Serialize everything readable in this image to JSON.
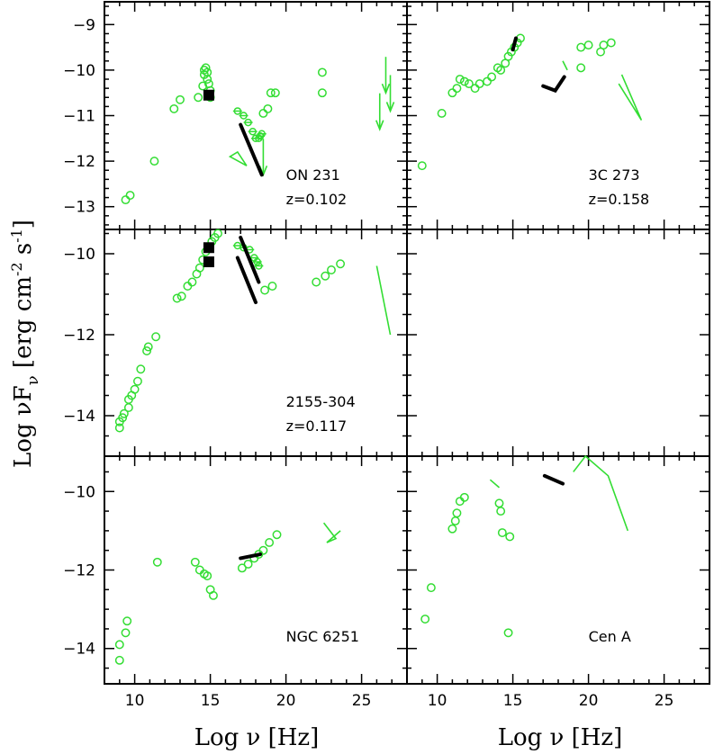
{
  "figure": {
    "xlabel": "Log ν [Hz]",
    "ylabel": "Log νF_ν [erg cm^-2 s^-1]",
    "ylabel_parts": {
      "main": "Log νF",
      "sub": "ν",
      "bracket": "[erg cm",
      "exp1": "-2",
      "mid": " s",
      "exp2": "-1",
      "end": "]"
    },
    "colors": {
      "data": "#33dd33",
      "models": "#000000",
      "frame": "#000000"
    },
    "xlim": [
      8,
      28
    ],
    "xticks": [
      10,
      15,
      20,
      25
    ]
  },
  "chart_data": [
    {
      "type": "scatter",
      "title": "ON 231",
      "subtitle": "z=0.102",
      "ylim": [
        -13.5,
        -8.5
      ],
      "yticks": [
        -9,
        -10,
        -11,
        -12,
        -13
      ],
      "green_points": [
        [
          9.4,
          -12.85
        ],
        [
          9.7,
          -12.75
        ],
        [
          11.3,
          -12.0
        ],
        [
          12.6,
          -10.85
        ],
        [
          13.0,
          -10.65
        ],
        [
          14.2,
          -10.6
        ],
        [
          14.5,
          -10.35
        ],
        [
          14.6,
          -10.1
        ],
        [
          14.6,
          -10.0
        ],
        [
          14.7,
          -9.95
        ],
        [
          14.8,
          -10.05
        ],
        [
          14.8,
          -10.2
        ],
        [
          14.9,
          -10.3
        ],
        [
          15.0,
          -10.45
        ],
        [
          15.0,
          -10.6
        ],
        [
          18.5,
          -10.95
        ],
        [
          18.8,
          -10.85
        ],
        [
          19.0,
          -10.5
        ],
        [
          19.3,
          -10.5
        ],
        [
          22.4,
          -10.05
        ],
        [
          22.4,
          -10.5
        ]
      ],
      "green_xray": [
        [
          16.8,
          -10.9
        ],
        [
          17.2,
          -11.0
        ],
        [
          17.5,
          -11.15
        ],
        [
          17.8,
          -11.35
        ],
        [
          18.0,
          -11.5
        ],
        [
          18.2,
          -11.5
        ],
        [
          18.3,
          -11.45
        ],
        [
          18.4,
          -11.4
        ]
      ],
      "green_upper_limits": [
        [
          18.5,
          -12.3
        ],
        [
          26.2,
          -11.3
        ],
        [
          26.6,
          -10.5
        ],
        [
          26.9,
          -10.9
        ]
      ],
      "green_gamma_bowtie": [
        [
          16.3,
          -11.9
        ],
        [
          17.4,
          -12.1
        ],
        [
          16.8,
          -11.8
        ]
      ],
      "black_segments": [
        [
          [
            17.0,
            -11.2
          ],
          [
            18.4,
            -12.3
          ]
        ]
      ],
      "black_blocks": [
        [
          14.9,
          -10.55
        ]
      ]
    },
    {
      "type": "scatter",
      "title": "3C 273",
      "subtitle": "z=0.158",
      "ylim": [
        -13.5,
        -8.5
      ],
      "green_points": [
        [
          9.0,
          -12.1
        ],
        [
          10.3,
          -10.95
        ],
        [
          11.0,
          -10.5
        ],
        [
          11.3,
          -10.4
        ],
        [
          11.5,
          -10.2
        ],
        [
          11.8,
          -10.25
        ],
        [
          12.1,
          -10.3
        ],
        [
          12.5,
          -10.4
        ],
        [
          12.8,
          -10.3
        ],
        [
          13.3,
          -10.25
        ],
        [
          13.6,
          -10.15
        ],
        [
          14.0,
          -9.95
        ],
        [
          14.2,
          -10.0
        ],
        [
          14.5,
          -9.85
        ],
        [
          14.7,
          -9.7
        ],
        [
          14.9,
          -9.6
        ],
        [
          15.1,
          -9.5
        ],
        [
          15.3,
          -9.4
        ],
        [
          15.5,
          -9.3
        ],
        [
          19.5,
          -9.5
        ],
        [
          19.5,
          -9.95
        ],
        [
          20.0,
          -9.45
        ],
        [
          20.8,
          -9.6
        ],
        [
          21.0,
          -9.45
        ],
        [
          21.5,
          -9.4
        ]
      ],
      "green_lines": [
        [
          [
            22.0,
            -10.3
          ],
          [
            23.5,
            -11.1
          ],
          [
            22.2,
            -10.1
          ]
        ],
        [
          [
            18.3,
            -9.8
          ],
          [
            18.6,
            -10.0
          ]
        ]
      ],
      "black_segments": [
        [
          [
            17.0,
            -10.35
          ],
          [
            17.8,
            -10.45
          ],
          [
            18.4,
            -10.15
          ]
        ],
        [
          [
            15.0,
            -9.55
          ],
          [
            15.2,
            -9.3
          ]
        ]
      ],
      "black_blocks": []
    },
    {
      "type": "scatter",
      "title": "2155-304",
      "subtitle": "z=0.117",
      "ylim": [
        -15,
        -9.4
      ],
      "yticks": [
        -10,
        -12,
        -14
      ],
      "green_points": [
        [
          9.0,
          -14.3
        ],
        [
          9.0,
          -14.15
        ],
        [
          9.2,
          -14.05
        ],
        [
          9.3,
          -13.95
        ],
        [
          9.6,
          -13.8
        ],
        [
          9.6,
          -13.6
        ],
        [
          9.8,
          -13.5
        ],
        [
          10.0,
          -13.35
        ],
        [
          10.2,
          -13.15
        ],
        [
          10.4,
          -12.85
        ],
        [
          10.8,
          -12.4
        ],
        [
          10.9,
          -12.3
        ],
        [
          11.4,
          -12.05
        ],
        [
          12.8,
          -11.1
        ],
        [
          13.1,
          -11.05
        ],
        [
          13.5,
          -10.8
        ],
        [
          13.8,
          -10.7
        ],
        [
          14.1,
          -10.5
        ],
        [
          14.3,
          -10.35
        ],
        [
          14.5,
          -10.15
        ],
        [
          14.7,
          -9.95
        ],
        [
          14.9,
          -9.85
        ],
        [
          15.1,
          -9.7
        ],
        [
          15.3,
          -9.6
        ],
        [
          15.5,
          -9.5
        ],
        [
          18.6,
          -10.9
        ],
        [
          19.1,
          -10.8
        ],
        [
          22.0,
          -10.7
        ],
        [
          22.6,
          -10.55
        ],
        [
          23.0,
          -10.4
        ],
        [
          23.6,
          -10.25
        ]
      ],
      "green_xray": [
        [
          16.8,
          -9.8
        ],
        [
          17.2,
          -9.85
        ],
        [
          17.6,
          -9.9
        ],
        [
          17.9,
          -10.1
        ],
        [
          18.1,
          -10.2
        ],
        [
          18.2,
          -10.3
        ]
      ],
      "green_lines": [
        [
          [
            26.0,
            -10.3
          ],
          [
            26.9,
            -12.0
          ]
        ]
      ],
      "black_segments": [
        [
          [
            17.0,
            -9.6
          ],
          [
            18.2,
            -10.7
          ]
        ],
        [
          [
            16.8,
            -10.1
          ],
          [
            18.0,
            -11.2
          ]
        ]
      ],
      "black_blocks": [
        [
          14.9,
          -9.85
        ],
        [
          14.9,
          -10.2
        ]
      ]
    },
    {
      "type": "scatter",
      "title": "",
      "subtitle": "",
      "ylim": [
        -15,
        -9.4
      ],
      "green_points": [],
      "black_segments": [],
      "black_blocks": []
    },
    {
      "type": "scatter",
      "title": "NGC 6251",
      "subtitle": "",
      "ylim": [
        -14.9,
        -9.1
      ],
      "yticks": [
        -10,
        -12,
        -14
      ],
      "green_points": [
        [
          9.0,
          -13.9
        ],
        [
          9.0,
          -14.3
        ],
        [
          9.4,
          -13.6
        ],
        [
          9.5,
          -13.3
        ],
        [
          11.5,
          -11.8
        ],
        [
          14.0,
          -11.8
        ],
        [
          14.3,
          -12.0
        ],
        [
          14.6,
          -12.1
        ],
        [
          14.8,
          -12.15
        ],
        [
          15.0,
          -12.5
        ],
        [
          15.2,
          -12.65
        ],
        [
          17.1,
          -11.95
        ],
        [
          17.5,
          -11.85
        ],
        [
          17.9,
          -11.7
        ],
        [
          18.2,
          -11.6
        ],
        [
          18.5,
          -11.5
        ],
        [
          18.9,
          -11.3
        ],
        [
          19.4,
          -11.1
        ]
      ],
      "green_lines": [
        [
          [
            22.5,
            -10.8
          ],
          [
            23.3,
            -11.2
          ],
          [
            22.7,
            -11.3
          ],
          [
            23.6,
            -11.0
          ]
        ]
      ],
      "black_segments": [
        [
          [
            17.0,
            -11.7
          ],
          [
            18.3,
            -11.6
          ]
        ]
      ],
      "black_blocks": []
    },
    {
      "type": "scatter",
      "title": "Cen A",
      "subtitle": "",
      "ylim": [
        -14.9,
        -9.1
      ],
      "green_points": [
        [
          9.2,
          -13.25
        ],
        [
          9.6,
          -12.45
        ],
        [
          11.0,
          -10.95
        ],
        [
          11.2,
          -10.75
        ],
        [
          11.3,
          -10.55
        ],
        [
          11.5,
          -10.25
        ],
        [
          11.8,
          -10.15
        ],
        [
          14.1,
          -10.3
        ],
        [
          14.2,
          -10.5
        ],
        [
          14.3,
          -11.05
        ],
        [
          14.7,
          -13.6
        ],
        [
          14.8,
          -11.15
        ]
      ],
      "green_lines": [
        [
          [
            13.5,
            -9.7
          ],
          [
            14.1,
            -9.9
          ]
        ],
        [
          [
            19.0,
            -9.5
          ],
          [
            19.8,
            -9.1
          ],
          [
            21.3,
            -9.6
          ],
          [
            22.6,
            -11.0
          ]
        ]
      ],
      "black_segments": [
        [
          [
            17.1,
            -9.6
          ],
          [
            18.3,
            -9.8
          ]
        ]
      ],
      "black_blocks": []
    }
  ]
}
